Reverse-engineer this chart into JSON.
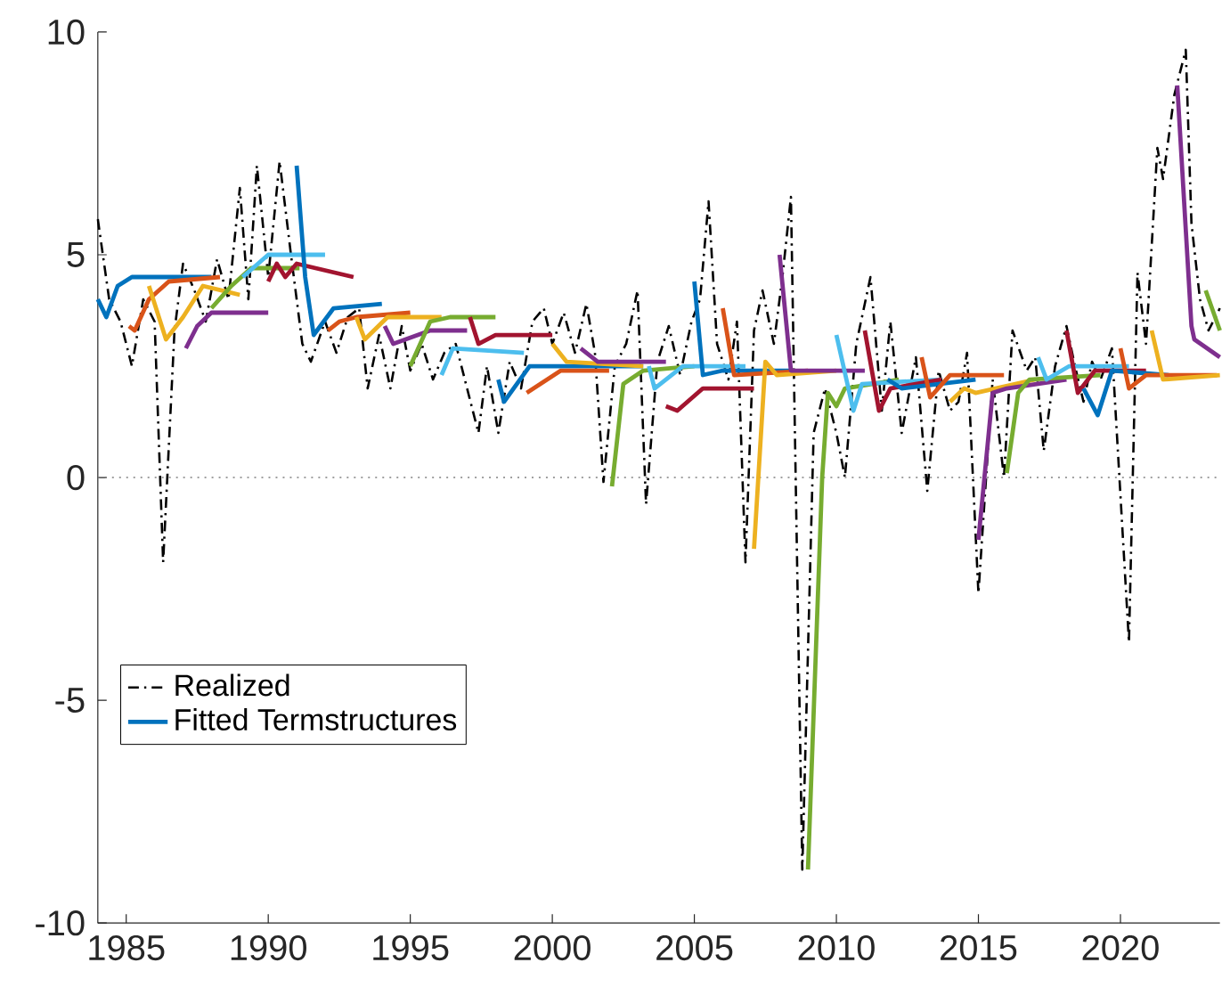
{
  "chart_data": {
    "type": "line",
    "xlim": [
      1984,
      2023.5
    ],
    "ylim": [
      -10,
      10
    ],
    "xticks": [
      1985,
      1990,
      1995,
      2000,
      2005,
      2010,
      2015,
      2020
    ],
    "yticks": [
      -10,
      -5,
      0,
      5,
      10
    ],
    "legend": "bottom left",
    "line_style": "solid",
    "ref_lines": [
      {
        "axis": "y",
        "value": 0,
        "color": "#808080",
        "line_style": "dotted"
      }
    ],
    "series": [
      {
        "name": "Realized",
        "color": "#000000",
        "line_style": "dashdot",
        "x": [
          1984.0,
          1984.4,
          1984.8,
          1985.2,
          1985.6,
          1986.0,
          1986.3,
          1986.7,
          1987.0,
          1987.4,
          1987.8,
          1988.2,
          1988.6,
          1989.0,
          1989.3,
          1989.6,
          1990.0,
          1990.4,
          1990.8,
          1991.2,
          1991.5,
          1992.0,
          1992.4,
          1992.8,
          1993.2,
          1993.5,
          1993.9,
          1994.3,
          1994.7,
          1995.0,
          1995.4,
          1995.8,
          1996.2,
          1996.6,
          1997.0,
          1997.4,
          1997.7,
          1998.1,
          1998.5,
          1998.9,
          1999.3,
          1999.7,
          2000.0,
          2000.4,
          2000.8,
          2001.2,
          2001.5,
          2001.8,
          2002.2,
          2002.6,
          2003.0,
          2003.3,
          2003.7,
          2004.1,
          2004.5,
          2004.9,
          2005.2,
          2005.5,
          2005.8,
          2006.2,
          2006.5,
          2006.8,
          2007.1,
          2007.4,
          2007.8,
          2008.1,
          2008.4,
          2008.8,
          2009.2,
          2009.6,
          2010.0,
          2010.3,
          2010.7,
          2011.2,
          2011.6,
          2011.9,
          2012.3,
          2012.8,
          2013.2,
          2013.6,
          2014.0,
          2014.3,
          2014.6,
          2015.0,
          2015.5,
          2015.9,
          2016.2,
          2016.7,
          2017.0,
          2017.3,
          2017.7,
          2018.1,
          2018.4,
          2018.7,
          2019.0,
          2019.3,
          2019.7,
          2020.3,
          2020.6,
          2020.9,
          2021.3,
          2021.5,
          2021.9,
          2022.3,
          2022.5,
          2022.8,
          2023.1,
          2023.5
        ],
        "values": [
          5.8,
          4.0,
          3.5,
          2.5,
          4.0,
          3.5,
          -1.9,
          3.3,
          4.8,
          4.2,
          3.5,
          4.9,
          4.0,
          6.5,
          4.0,
          7.0,
          4.5,
          7.1,
          5.0,
          3.0,
          2.6,
          3.5,
          2.8,
          3.6,
          3.8,
          2.0,
          3.2,
          2.0,
          3.4,
          2.4,
          3.0,
          2.2,
          2.8,
          3.0,
          2.0,
          1.0,
          2.5,
          1.0,
          2.6,
          2.0,
          3.5,
          3.8,
          3.0,
          3.7,
          2.8,
          3.9,
          2.8,
          -0.1,
          2.5,
          3.0,
          4.2,
          -0.6,
          2.6,
          3.4,
          2.3,
          3.5,
          4.0,
          6.2,
          3.0,
          2.2,
          3.5,
          -1.9,
          3.3,
          4.2,
          3.0,
          4.5,
          6.3,
          -8.8,
          1.0,
          2.0,
          1.0,
          0.0,
          3.0,
          4.5,
          1.5,
          3.5,
          1.0,
          2.7,
          -0.3,
          2.4,
          1.5,
          1.7,
          2.8,
          -2.6,
          2.2,
          0.0,
          3.3,
          2.4,
          2.7,
          0.6,
          2.5,
          3.4,
          2.5,
          1.7,
          2.6,
          2.2,
          2.9,
          -3.7,
          4.6,
          3.0,
          7.4,
          6.7,
          8.6,
          9.6,
          5.7,
          4.0,
          3.3,
          3.8
        ]
      },
      {
        "name": "Fitted Termstructures",
        "color": "#0072bd",
        "x": [
          1984.0,
          1984.3,
          1984.7,
          1985.2,
          1986.0,
          1988.0
        ],
        "values": [
          4.0,
          3.6,
          4.3,
          4.5,
          4.5,
          4.5
        ]
      },
      {
        "color": "#d95319",
        "x": [
          1985.1,
          1985.3,
          1985.8,
          1986.5,
          1988.3
        ],
        "values": [
          3.4,
          3.3,
          4.0,
          4.4,
          4.5
        ]
      },
      {
        "color": "#edb120",
        "x": [
          1985.8,
          1986.4,
          1987.0,
          1987.7,
          1989.0
        ],
        "values": [
          4.3,
          3.1,
          3.6,
          4.3,
          4.1
        ]
      },
      {
        "color": "#7e2f8e",
        "x": [
          1987.1,
          1987.5,
          1988.0,
          1990.0
        ],
        "values": [
          2.9,
          3.4,
          3.7,
          3.7
        ]
      },
      {
        "color": "#77ac30",
        "x": [
          1988.0,
          1988.7,
          1989.4,
          1991.1
        ],
        "values": [
          3.8,
          4.3,
          4.7,
          4.7
        ]
      },
      {
        "color": "#4dbeee",
        "x": [
          1989.1,
          1990.0,
          1992.0
        ],
        "values": [
          4.5,
          5.0,
          5.0
        ]
      },
      {
        "color": "#a2142f",
        "x": [
          1990.0,
          1990.3,
          1990.6,
          1991.0,
          1993.0
        ],
        "values": [
          4.4,
          4.8,
          4.5,
          4.8,
          4.5
        ]
      },
      {
        "color": "#0072bd",
        "x": [
          1991.0,
          1991.3,
          1991.6,
          1992.3,
          1994.0
        ],
        "values": [
          7.0,
          4.5,
          3.2,
          3.8,
          3.9
        ]
      },
      {
        "color": "#d95319",
        "x": [
          1992.1,
          1992.5,
          1993.1,
          1995.0
        ],
        "values": [
          3.3,
          3.5,
          3.6,
          3.7
        ]
      },
      {
        "color": "#edb120",
        "x": [
          1993.1,
          1993.4,
          1994.2,
          1996.1
        ],
        "values": [
          3.6,
          3.1,
          3.6,
          3.6
        ]
      },
      {
        "color": "#7e2f8e",
        "x": [
          1994.1,
          1994.4,
          1995.7,
          1997.0
        ],
        "values": [
          3.4,
          3.0,
          3.3,
          3.3
        ]
      },
      {
        "color": "#77ac30",
        "x": [
          1995.0,
          1995.7,
          1996.4,
          1998.0
        ],
        "values": [
          2.5,
          3.5,
          3.6,
          3.6
        ]
      },
      {
        "color": "#4dbeee",
        "x": [
          1996.1,
          1996.5,
          1999.0
        ],
        "values": [
          2.3,
          2.9,
          2.8
        ]
      },
      {
        "color": "#a2142f",
        "x": [
          1997.1,
          1997.4,
          1998.0,
          2000.0
        ],
        "values": [
          3.6,
          3.0,
          3.2,
          3.2
        ]
      },
      {
        "color": "#0072bd",
        "x": [
          1998.1,
          1998.3,
          1999.2,
          2003.2
        ],
        "values": [
          2.2,
          1.7,
          2.5,
          2.5
        ]
      },
      {
        "color": "#d95319",
        "x": [
          1999.1,
          2000.3,
          2002.0
        ],
        "values": [
          1.9,
          2.4,
          2.4
        ]
      },
      {
        "color": "#edb120",
        "x": [
          2000.0,
          2000.5,
          2003.2
        ],
        "values": [
          3.0,
          2.6,
          2.5
        ]
      },
      {
        "color": "#7e2f8e",
        "x": [
          2001.0,
          2001.6,
          2004.0
        ],
        "values": [
          2.9,
          2.6,
          2.6
        ]
      },
      {
        "color": "#77ac30",
        "x": [
          2002.1,
          2002.5,
          2003.2,
          2005.0
        ],
        "values": [
          -0.2,
          2.1,
          2.4,
          2.5
        ]
      },
      {
        "color": "#4dbeee",
        "x": [
          2003.4,
          2003.6,
          2004.6,
          2006.8
        ],
        "values": [
          2.5,
          2.0,
          2.5,
          2.5
        ]
      },
      {
        "color": "#a2142f",
        "x": [
          2004.0,
          2004.4,
          2005.3,
          2007.1
        ],
        "values": [
          1.6,
          1.5,
          2.0,
          2.0
        ]
      },
      {
        "color": "#0072bd",
        "x": [
          2005.0,
          2005.3,
          2006.0,
          2008.4
        ],
        "values": [
          4.4,
          2.3,
          2.4,
          2.4
        ]
      },
      {
        "color": "#d95319",
        "x": [
          2006.0,
          2006.4,
          2009.0
        ],
        "values": [
          3.8,
          2.3,
          2.4
        ]
      },
      {
        "color": "#edb120",
        "x": [
          2007.1,
          2007.5,
          2007.9,
          2010.0
        ],
        "values": [
          -1.6,
          2.6,
          2.3,
          2.4
        ]
      },
      {
        "color": "#7e2f8e",
        "x": [
          2008.0,
          2008.4,
          2011.0
        ],
        "values": [
          5.0,
          2.4,
          2.4
        ]
      },
      {
        "color": "#77ac30",
        "x": [
          2009.0,
          2009.5,
          2009.7,
          2010.0,
          2010.3,
          2012.2
        ],
        "values": [
          -8.8,
          0.0,
          1.9,
          1.6,
          2.0,
          2.2
        ]
      },
      {
        "color": "#4dbeee",
        "x": [
          2010.0,
          2010.6,
          2010.9,
          2013.7
        ],
        "values": [
          3.2,
          1.5,
          2.1,
          2.2
        ]
      },
      {
        "color": "#a2142f",
        "x": [
          2011.0,
          2011.5,
          2011.9,
          2013.7
        ],
        "values": [
          3.3,
          1.5,
          2.0,
          2.2
        ]
      },
      {
        "color": "#0072bd",
        "x": [
          2011.8,
          2012.3,
          2014.9
        ],
        "values": [
          2.2,
          2.0,
          2.2
        ]
      },
      {
        "color": "#d95319",
        "x": [
          2013.0,
          2013.3,
          2014.0,
          2015.9
        ],
        "values": [
          2.7,
          1.8,
          2.3,
          2.3
        ]
      },
      {
        "color": "#edb120",
        "x": [
          2014.0,
          2014.5,
          2014.9,
          2017.0
        ],
        "values": [
          1.7,
          2.0,
          1.9,
          2.2
        ]
      },
      {
        "color": "#7e2f8e",
        "x": [
          2015.0,
          2015.5,
          2016.0,
          2018.1
        ],
        "values": [
          -1.4,
          1.9,
          2.0,
          2.2
        ]
      },
      {
        "color": "#77ac30",
        "x": [
          2016.0,
          2016.4,
          2016.8,
          2019.3
        ],
        "values": [
          0.1,
          1.9,
          2.2,
          2.3
        ]
      },
      {
        "color": "#4dbeee",
        "x": [
          2017.1,
          2017.4,
          2018.2,
          2020.3
        ],
        "values": [
          2.7,
          2.2,
          2.5,
          2.5
        ]
      },
      {
        "color": "#a2142f",
        "x": [
          2018.1,
          2018.5,
          2019.1,
          2020.9
        ],
        "values": [
          3.3,
          1.9,
          2.4,
          2.4
        ]
      },
      {
        "color": "#0072bd",
        "x": [
          2018.7,
          2019.2,
          2019.7,
          2021.7
        ],
        "values": [
          2.0,
          1.4,
          2.4,
          2.3
        ]
      },
      {
        "color": "#d95319",
        "x": [
          2020.0,
          2020.3,
          2020.9,
          2023.4
        ],
        "values": [
          2.9,
          2.0,
          2.3,
          2.3
        ]
      },
      {
        "color": "#edb120",
        "x": [
          2021.1,
          2021.5,
          2023.5
        ],
        "values": [
          3.3,
          2.2,
          2.3
        ]
      },
      {
        "color": "#7e2f8e",
        "x": [
          2022.0,
          2022.5,
          2022.6,
          2023.5
        ],
        "values": [
          8.8,
          3.4,
          3.1,
          2.7
        ]
      },
      {
        "color": "#77ac30",
        "x": [
          2023.0,
          2023.5
        ],
        "values": [
          4.2,
          3.3
        ]
      }
    ]
  }
}
